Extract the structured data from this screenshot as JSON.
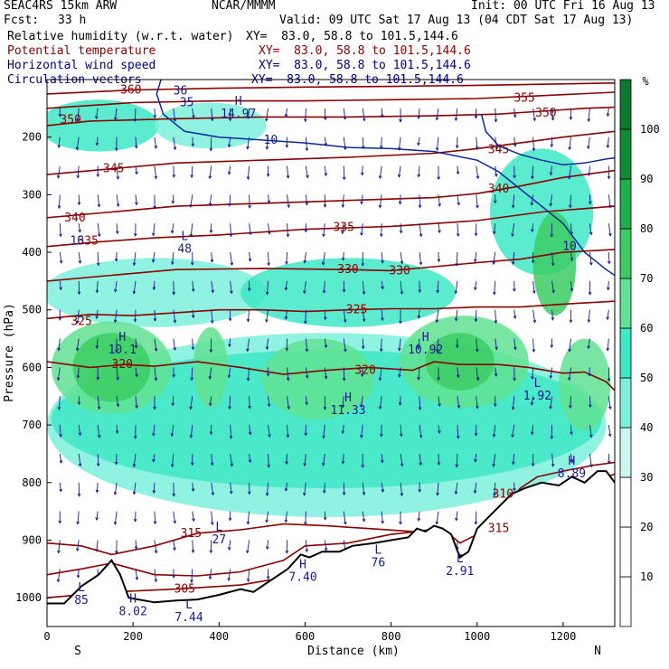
{
  "header": {
    "model": "SEAC4RS 15km ARW",
    "center": "NCAR/MMMM",
    "init": "Init: 00 UTC Fri 16 Aug 13",
    "fcst_label": "Fcst:",
    "fcst_value": "33 h",
    "valid": "Valid: 09 UTC Sat 17 Aug 13 (04 CDT Sat 17 Aug 13)",
    "fields": [
      {
        "name": "Relative humidity (w.r.t. water)",
        "xy": "XY=  83.0, 58.8 to 101.5,144.6",
        "color": "#000000"
      },
      {
        "name": "Potential temperature",
        "xy": "XY=  83.0, 58.8 to 101.5,144.6",
        "color": "#8b0000"
      },
      {
        "name": "Horizontal wind speed",
        "xy": "XY=  83.0, 58.8 to 101.5,144.6",
        "color": "#000080"
      },
      {
        "name": "Circulation vectors",
        "xy": "XY=  83.0, 58.8 to 101.5,144.6",
        "color": "#000080"
      }
    ]
  },
  "colorbar": {
    "unit": "%",
    "levels": [
      10,
      20,
      30,
      40,
      50,
      60,
      70,
      80,
      90,
      100
    ],
    "colors": [
      "#ffffff",
      "#ffffff",
      "#ffffff",
      "#ccf7ee",
      "#7df0dc",
      "#3ee7c6",
      "#60e292",
      "#3ccc63",
      "#20b04a",
      "#0d8c34",
      "#0a7a2c"
    ]
  },
  "chart_data": {
    "type": "heatmap",
    "title": "",
    "xlabel": "Distance (km)",
    "ylabel": "Pressure (hPa)",
    "xlim": [
      0,
      1320
    ],
    "ylim": [
      1050,
      100
    ],
    "x_ticks": [
      0,
      200,
      400,
      600,
      800,
      1000,
      1200
    ],
    "y_ticks": [
      200,
      300,
      400,
      500,
      600,
      700,
      800,
      900,
      1000
    ],
    "endpoint_labels": {
      "left": "S",
      "right": "N"
    },
    "theta_contours": [
      {
        "value": 305,
        "points": [
          [
            0,
            1000
          ],
          [
            150,
            990
          ],
          [
            300,
            985
          ],
          [
            450,
            978
          ],
          [
            550,
            965
          ]
        ]
      },
      {
        "value": 310,
        "points": [
          [
            0,
            960
          ],
          [
            80,
            950
          ],
          [
            150,
            940
          ],
          [
            250,
            960
          ],
          [
            350,
            962
          ],
          [
            450,
            955
          ],
          [
            550,
            935
          ],
          [
            600,
            910
          ],
          [
            700,
            905
          ],
          [
            800,
            890
          ],
          [
            860,
            885
          ],
          [
            900,
            900
          ],
          [
            940,
            920
          ],
          [
            980,
            930
          ],
          [
            1020,
            890
          ],
          [
            1060,
            850
          ],
          [
            1100,
            810
          ],
          [
            1140,
            790
          ],
          [
            1200,
            780
          ],
          [
            1270,
            770
          ],
          [
            1320,
            765
          ]
        ]
      },
      {
        "value": 315,
        "points": [
          [
            0,
            905
          ],
          [
            80,
            910
          ],
          [
            150,
            925
          ],
          [
            250,
            910
          ],
          [
            350,
            888
          ],
          [
            450,
            882
          ],
          [
            550,
            872
          ],
          [
            650,
            875
          ],
          [
            750,
            880
          ],
          [
            850,
            885
          ],
          [
            920,
            880
          ],
          [
            960,
            905
          ],
          [
            1000,
            890
          ],
          [
            1040,
            855
          ],
          [
            1080,
            825
          ],
          [
            1120,
            810
          ],
          [
            1200,
            810
          ],
          [
            1270,
            800
          ],
          [
            1320,
            785
          ]
        ]
      },
      {
        "value": 320,
        "points": [
          [
            0,
            590
          ],
          [
            100,
            600
          ],
          [
            180,
            595
          ],
          [
            250,
            598
          ],
          [
            350,
            590
          ],
          [
            450,
            600
          ],
          [
            550,
            612
          ],
          [
            650,
            605
          ],
          [
            750,
            600
          ],
          [
            850,
            605
          ],
          [
            900,
            590
          ],
          [
            960,
            595
          ],
          [
            1050,
            595
          ],
          [
            1120,
            600
          ],
          [
            1200,
            610
          ],
          [
            1250,
            608
          ],
          [
            1300,
            625
          ],
          [
            1320,
            640
          ]
        ]
      },
      {
        "value": 325,
        "points": [
          [
            0,
            515
          ],
          [
            100,
            508
          ],
          [
            200,
            510
          ],
          [
            300,
            505
          ],
          [
            400,
            500
          ],
          [
            500,
            500
          ],
          [
            600,
            503
          ],
          [
            700,
            500
          ],
          [
            800,
            498
          ],
          [
            900,
            498
          ],
          [
            1000,
            495
          ],
          [
            1100,
            495
          ],
          [
            1200,
            490
          ],
          [
            1320,
            485
          ]
        ]
      },
      {
        "value": 330,
        "points": [
          [
            0,
            450
          ],
          [
            150,
            440
          ],
          [
            300,
            430
          ],
          [
            500,
            428
          ],
          [
            700,
            430
          ],
          [
            800,
            432
          ],
          [
            900,
            425
          ],
          [
            1000,
            418
          ],
          [
            1100,
            412
          ],
          [
            1200,
            400
          ],
          [
            1320,
            395
          ]
        ]
      },
      {
        "value": 335,
        "points": [
          [
            0,
            390
          ],
          [
            120,
            382
          ],
          [
            250,
            375
          ],
          [
            400,
            370
          ],
          [
            600,
            360
          ],
          [
            800,
            355
          ],
          [
            1000,
            345
          ],
          [
            1150,
            330
          ],
          [
            1320,
            320
          ]
        ]
      },
      {
        "value": 340,
        "points": [
          [
            0,
            340
          ],
          [
            150,
            330
          ],
          [
            300,
            320
          ],
          [
            500,
            315
          ],
          [
            700,
            310
          ],
          [
            900,
            305
          ],
          [
            1000,
            298
          ],
          [
            1100,
            285
          ],
          [
            1200,
            270
          ],
          [
            1320,
            258
          ]
        ]
      },
      {
        "value": 345,
        "points": [
          [
            0,
            265
          ],
          [
            150,
            255
          ],
          [
            300,
            245
          ],
          [
            500,
            240
          ],
          [
            700,
            235
          ],
          [
            900,
            228
          ],
          [
            1000,
            220
          ],
          [
            1100,
            210
          ],
          [
            1200,
            200
          ],
          [
            1320,
            190
          ]
        ]
      },
      {
        "value": 350,
        "points": [
          [
            0,
            180
          ],
          [
            100,
            172
          ],
          [
            300,
            168
          ],
          [
            500,
            165
          ],
          [
            700,
            165
          ],
          [
            900,
            163
          ],
          [
            1050,
            160
          ],
          [
            1150,
            155
          ],
          [
            1250,
            150
          ],
          [
            1320,
            148
          ]
        ]
      },
      {
        "value": 355,
        "points": [
          [
            0,
            150
          ],
          [
            200,
            140
          ],
          [
            400,
            137
          ],
          [
            600,
            137
          ],
          [
            800,
            135
          ],
          [
            1000,
            133
          ],
          [
            1150,
            128
          ],
          [
            1320,
            122
          ]
        ]
      },
      {
        "value": 360,
        "points": [
          [
            0,
            125
          ],
          [
            200,
            118
          ],
          [
            400,
            115
          ],
          [
            600,
            113
          ],
          [
            800,
            112
          ],
          [
            1000,
            110
          ],
          [
            1320,
            106
          ]
        ]
      }
    ],
    "theta_labels": [
      {
        "text": "360",
        "x": 195,
        "y": 118
      },
      {
        "text": "350",
        "x": 55,
        "y": 170
      },
      {
        "text": "345",
        "x": 155,
        "y": 255
      },
      {
        "text": "340",
        "x": 65,
        "y": 340
      },
      {
        "text": "335",
        "x": 95,
        "y": 380
      },
      {
        "text": "335",
        "x": 690,
        "y": 357
      },
      {
        "text": "330",
        "x": 700,
        "y": 430
      },
      {
        "text": "330",
        "x": 820,
        "y": 432
      },
      {
        "text": "325",
        "x": 80,
        "y": 520
      },
      {
        "text": "325",
        "x": 720,
        "y": 500
      },
      {
        "text": "320",
        "x": 175,
        "y": 595
      },
      {
        "text": "320",
        "x": 740,
        "y": 605
      },
      {
        "text": "315",
        "x": 335,
        "y": 888
      },
      {
        "text": "315",
        "x": 1050,
        "y": 880
      },
      {
        "text": "310",
        "x": 1060,
        "y": 820
      },
      {
        "text": "305",
        "x": 320,
        "y": 985
      },
      {
        "text": "355",
        "x": 1110,
        "y": 132
      },
      {
        "text": "350",
        "x": 1160,
        "y": 158
      },
      {
        "text": "345",
        "x": 1050,
        "y": 222
      },
      {
        "text": "340",
        "x": 1050,
        "y": 290
      }
    ],
    "wind_contours": [
      {
        "value": 10,
        "points": [
          [
            265,
            100
          ],
          [
            255,
            125
          ],
          [
            270,
            160
          ],
          [
            320,
            190
          ],
          [
            400,
            200
          ],
          [
            500,
            205
          ],
          [
            600,
            210
          ],
          [
            700,
            218
          ],
          [
            800,
            220
          ],
          [
            900,
            225
          ],
          [
            1000,
            240
          ],
          [
            1050,
            260
          ],
          [
            1100,
            290
          ],
          [
            1150,
            320
          ],
          [
            1200,
            350
          ],
          [
            1250,
            400
          ],
          [
            1300,
            430
          ],
          [
            1320,
            440
          ]
        ]
      },
      {
        "value": 10,
        "points": [
          [
            1010,
            160
          ],
          [
            1020,
            190
          ],
          [
            1050,
            215
          ],
          [
            1100,
            230
          ],
          [
            1150,
            240
          ],
          [
            1200,
            248
          ],
          [
            1250,
            245
          ],
          [
            1300,
            238
          ],
          [
            1320,
            236
          ]
        ]
      }
    ],
    "wind_labels": [
      {
        "text": "10",
        "x": 520,
        "y": 205
      },
      {
        "text": "10",
        "x": 1215,
        "y": 390
      },
      {
        "text": "16",
        "x": 70,
        "y": 380
      },
      {
        "text": "36",
        "x": 310,
        "y": 120
      },
      {
        "text": "35",
        "x": 325,
        "y": 140
      }
    ],
    "extrema": [
      {
        "type": "H",
        "value": "14.97",
        "x": 445,
        "y": 150
      },
      {
        "type": "L",
        "value": "48",
        "x": 320,
        "y": 385
      },
      {
        "type": "H",
        "value": "10.1",
        "x": 175,
        "y": 560
      },
      {
        "type": "H",
        "value": "10.92",
        "x": 880,
        "y": 560
      },
      {
        "type": "H",
        "value": "11.33",
        "x": 700,
        "y": 665
      },
      {
        "type": "L",
        "value": "1.92",
        "x": 1140,
        "y": 640
      },
      {
        "type": "H",
        "value": "8.89",
        "x": 1220,
        "y": 775
      },
      {
        "type": "L",
        "value": "27",
        "x": 400,
        "y": 890
      },
      {
        "type": "H",
        "value": "7.40",
        "x": 595,
        "y": 955
      },
      {
        "type": "L",
        "value": "76",
        "x": 770,
        "y": 930
      },
      {
        "type": "L",
        "value": "2.91",
        "x": 960,
        "y": 945
      },
      {
        "type": "H",
        "value": "8.02",
        "x": 200,
        "y": 1015
      },
      {
        "type": "L",
        "value": "85",
        "x": 80,
        "y": 995
      },
      {
        "type": "L",
        "value": "7.44",
        "x": 330,
        "y": 1025
      }
    ],
    "rh_blobs": [
      {
        "cx": 120,
        "cy": 180,
        "rx": 140,
        "ry": 45,
        "rh": 50
      },
      {
        "cx": 380,
        "cy": 180,
        "rx": 130,
        "ry": 40,
        "rh": 45
      },
      {
        "cx": 250,
        "cy": 470,
        "rx": 260,
        "ry": 60,
        "rh": 45
      },
      {
        "cx": 700,
        "cy": 470,
        "rx": 250,
        "ry": 60,
        "rh": 50
      },
      {
        "cx": 1150,
        "cy": 330,
        "rx": 120,
        "ry": 110,
        "rh": 55
      },
      {
        "cx": 650,
        "cy": 700,
        "rx": 650,
        "ry": 160,
        "rh": 40
      },
      {
        "cx": 650,
        "cy": 690,
        "rx": 640,
        "ry": 120,
        "rh": 50
      },
      {
        "cx": 150,
        "cy": 600,
        "rx": 140,
        "ry": 80,
        "rh": 65
      },
      {
        "cx": 150,
        "cy": 600,
        "rx": 90,
        "ry": 60,
        "rh": 75
      },
      {
        "cx": 380,
        "cy": 600,
        "rx": 40,
        "ry": 70,
        "rh": 65
      },
      {
        "cx": 630,
        "cy": 620,
        "rx": 130,
        "ry": 70,
        "rh": 60
      },
      {
        "cx": 970,
        "cy": 590,
        "rx": 150,
        "ry": 80,
        "rh": 65
      },
      {
        "cx": 960,
        "cy": 590,
        "rx": 80,
        "ry": 50,
        "rh": 75
      },
      {
        "cx": 1180,
        "cy": 420,
        "rx": 50,
        "ry": 90,
        "rh": 70
      },
      {
        "cx": 1250,
        "cy": 630,
        "rx": 60,
        "ry": 80,
        "rh": 60
      }
    ],
    "terrain": [
      [
        0,
        1010
      ],
      [
        40,
        1010
      ],
      [
        80,
        980
      ],
      [
        120,
        960
      ],
      [
        150,
        935
      ],
      [
        170,
        960
      ],
      [
        190,
        1000
      ],
      [
        250,
        1008
      ],
      [
        300,
        1005
      ],
      [
        350,
        1003
      ],
      [
        400,
        995
      ],
      [
        450,
        985
      ],
      [
        480,
        990
      ],
      [
        510,
        975
      ],
      [
        560,
        950
      ],
      [
        590,
        925
      ],
      [
        610,
        930
      ],
      [
        640,
        920
      ],
      [
        680,
        920
      ],
      [
        710,
        910
      ],
      [
        760,
        905
      ],
      [
        800,
        900
      ],
      [
        840,
        895
      ],
      [
        860,
        880
      ],
      [
        880,
        885
      ],
      [
        900,
        875
      ],
      [
        920,
        880
      ],
      [
        940,
        890
      ],
      [
        960,
        930
      ],
      [
        980,
        920
      ],
      [
        1000,
        880
      ],
      [
        1040,
        850
      ],
      [
        1080,
        820
      ],
      [
        1110,
        810
      ],
      [
        1150,
        800
      ],
      [
        1190,
        805
      ],
      [
        1220,
        790
      ],
      [
        1250,
        800
      ],
      [
        1280,
        780
      ],
      [
        1300,
        780
      ],
      [
        1320,
        800
      ]
    ]
  }
}
